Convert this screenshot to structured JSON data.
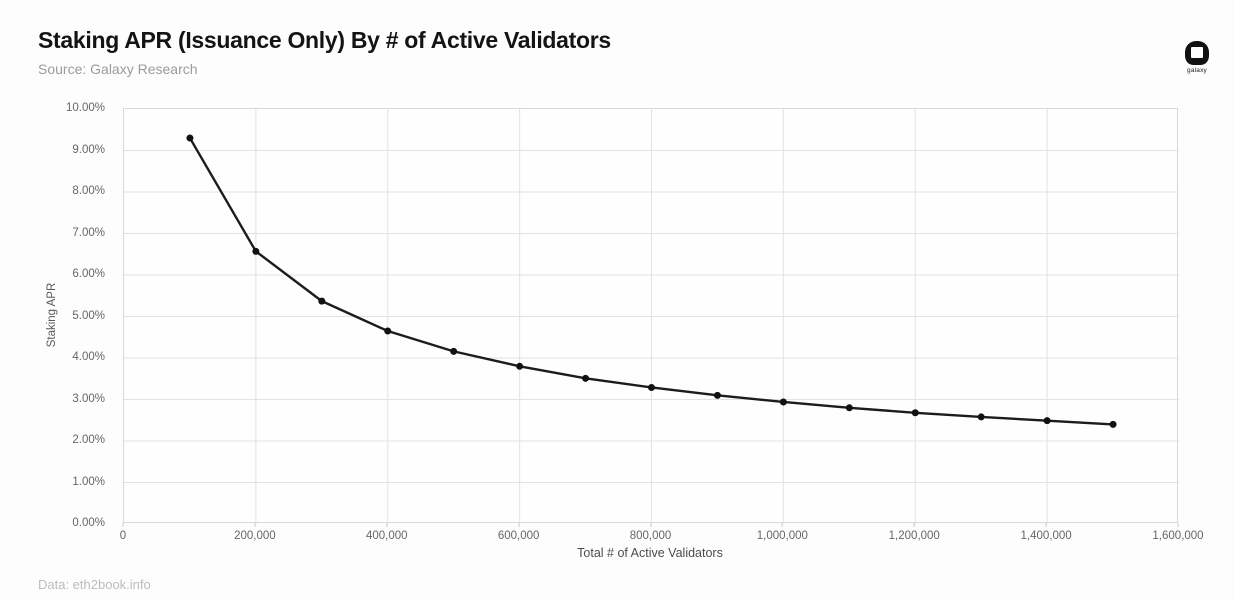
{
  "header": {
    "title": "Staking APR (Issuance Only) By # of Active Validators",
    "source": "Source: Galaxy Research",
    "logo_text": "galaxy"
  },
  "footer": {
    "note": "Data: eth2book.info"
  },
  "chart_data": {
    "type": "line",
    "title": "Staking APR (Issuance Only) By # of Active Validators",
    "xlabel": "Total # of Active Validators",
    "ylabel": "Staking APR",
    "x": [
      100000,
      200000,
      300000,
      400000,
      500000,
      600000,
      700000,
      800000,
      900000,
      1000000,
      1100000,
      1200000,
      1300000,
      1400000,
      1500000
    ],
    "values": [
      9.3,
      6.57,
      5.37,
      4.65,
      4.16,
      3.8,
      3.51,
      3.29,
      3.1,
      2.94,
      2.8,
      2.68,
      2.58,
      2.49,
      2.4
    ],
    "xlim": [
      0,
      1600000
    ],
    "ylim": [
      0,
      10
    ],
    "x_ticks": [
      0,
      200000,
      400000,
      600000,
      800000,
      1000000,
      1200000,
      1400000,
      1600000
    ],
    "x_tick_labels": [
      "0",
      "200,000",
      "400,000",
      "600,000",
      "800,000",
      "1,000,000",
      "1,200,000",
      "1,400,000",
      "1,600,000"
    ],
    "y_ticks": [
      0,
      1,
      2,
      3,
      4,
      5,
      6,
      7,
      8,
      9,
      10
    ],
    "y_tick_labels": [
      "0.00%",
      "1.00%",
      "2.00%",
      "3.00%",
      "4.00%",
      "5.00%",
      "6.00%",
      "7.00%",
      "8.00%",
      "9.00%",
      "10.00%"
    ],
    "grid": true,
    "legend": "none",
    "line_color": "#1c1c1c",
    "marker_color": "#111111",
    "grid_color": "#e2e2e2"
  }
}
